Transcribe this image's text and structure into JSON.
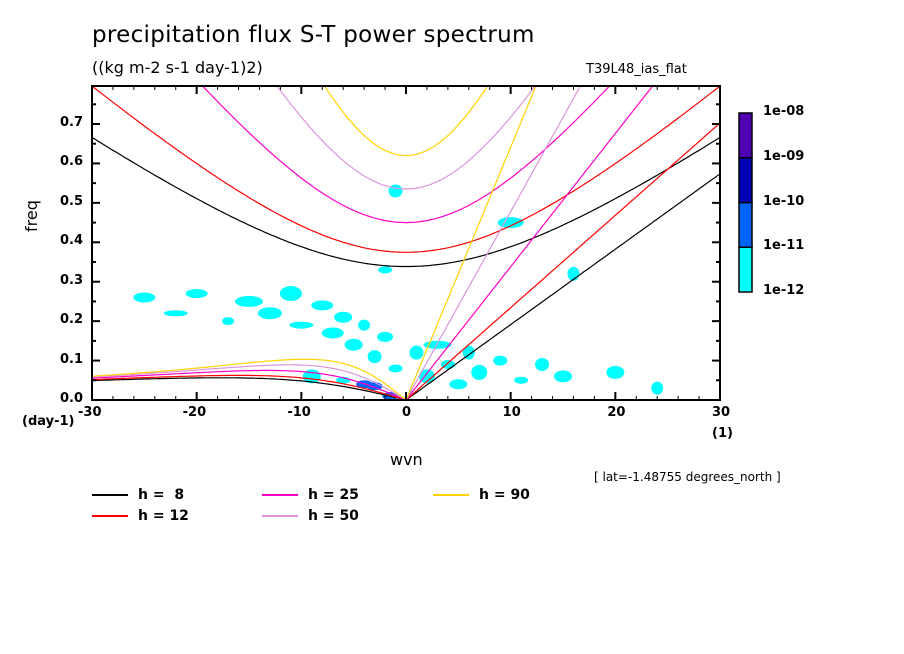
{
  "chart_data": {
    "type": "heatmap",
    "title": "precipitation flux S-T power spectrum",
    "subtitle": "((kg m-2 s-1 day-1)2)",
    "run_label": "T39L48_ias_flat",
    "xlabel": "wvn",
    "ylabel": "freq",
    "x_units": "(1)",
    "y_units": "(day-1)",
    "xlim": [
      -30,
      30
    ],
    "ylim": [
      0.0,
      0.79
    ],
    "x_ticks": [
      -30,
      -20,
      -10,
      0,
      10,
      20,
      30
    ],
    "x_tick_labels": [
      "-30",
      "-20",
      "-10",
      "0",
      "10",
      "20",
      "30"
    ],
    "y_ticks": [
      0.0,
      0.1,
      0.2,
      0.3,
      0.4,
      0.5,
      0.6,
      0.7
    ],
    "y_tick_labels": [
      "0.0",
      "0.1",
      "0.2",
      "0.3",
      "0.4",
      "0.5",
      "0.6",
      "0.7"
    ],
    "annotation": "[ lat=-1.48755 degrees_north ]",
    "colorbar": {
      "levels": [
        1e-12,
        1e-11,
        1e-10,
        1e-09,
        1e-08
      ],
      "labels": [
        "1e-12",
        "1e-11",
        "1e-10",
        "1e-09",
        "1e-08"
      ],
      "colors": [
        "#00ffff",
        "#0064ff",
        "#0000b4",
        "#5000b4"
      ]
    },
    "dispersion_curves": {
      "equivalent_depths": [
        8,
        12,
        25,
        50,
        90
      ],
      "wave_types": [
        "kelvin",
        "rossby_n1",
        "inertio_gravity_n1"
      ],
      "legend": [
        {
          "label": "h =  8",
          "color": "#000000"
        },
        {
          "label": "h = 12",
          "color": "#ff0000"
        },
        {
          "label": "h = 25",
          "color": "#ff00c8"
        },
        {
          "label": "h = 50",
          "color": "#dc96dc"
        },
        {
          "label": "h = 90",
          "color": "#ffd200"
        }
      ]
    },
    "power_patches": [
      {
        "wvn": -25,
        "freq": 0.26,
        "level": 0
      },
      {
        "wvn": -22,
        "freq": 0.22,
        "level": 0
      },
      {
        "wvn": -20,
        "freq": 0.27,
        "level": 0
      },
      {
        "wvn": -17,
        "freq": 0.2,
        "level": 0
      },
      {
        "wvn": -15,
        "freq": 0.25,
        "level": 0
      },
      {
        "wvn": -13,
        "freq": 0.22,
        "level": 0
      },
      {
        "wvn": -11,
        "freq": 0.27,
        "level": 0
      },
      {
        "wvn": -10,
        "freq": 0.19,
        "level": 0
      },
      {
        "wvn": -8,
        "freq": 0.24,
        "level": 0
      },
      {
        "wvn": -7,
        "freq": 0.17,
        "level": 0
      },
      {
        "wvn": -6,
        "freq": 0.21,
        "level": 0
      },
      {
        "wvn": -5,
        "freq": 0.14,
        "level": 0
      },
      {
        "wvn": -4,
        "freq": 0.19,
        "level": 0
      },
      {
        "wvn": -3,
        "freq": 0.11,
        "level": 0
      },
      {
        "wvn": -2,
        "freq": 0.16,
        "level": 0
      },
      {
        "wvn": -1,
        "freq": 0.08,
        "level": 0
      },
      {
        "wvn": 1,
        "freq": 0.12,
        "level": 0
      },
      {
        "wvn": 2,
        "freq": 0.06,
        "level": 0
      },
      {
        "wvn": 3,
        "freq": 0.14,
        "level": 0
      },
      {
        "wvn": 4,
        "freq": 0.09,
        "level": 0
      },
      {
        "wvn": 5,
        "freq": 0.04,
        "level": 0
      },
      {
        "wvn": 6,
        "freq": 0.12,
        "level": 0
      },
      {
        "wvn": 7,
        "freq": 0.07,
        "level": 0
      },
      {
        "wvn": 9,
        "freq": 0.1,
        "level": 0
      },
      {
        "wvn": 11,
        "freq": 0.05,
        "level": 0
      },
      {
        "wvn": 13,
        "freq": 0.09,
        "level": 0
      },
      {
        "wvn": 15,
        "freq": 0.06,
        "level": 0
      },
      {
        "wvn": 20,
        "freq": 0.07,
        "level": 0
      },
      {
        "wvn": 24,
        "freq": 0.03,
        "level": 0
      },
      {
        "wvn": -9,
        "freq": 0.06,
        "level": 0
      },
      {
        "wvn": -6,
        "freq": 0.05,
        "level": 0
      },
      {
        "wvn": -4,
        "freq": 0.04,
        "level": 1
      },
      {
        "wvn": -3,
        "freq": 0.035,
        "level": 1
      },
      {
        "wvn": -1.5,
        "freq": 0.01,
        "level": 1
      },
      {
        "wvn": -2,
        "freq": 0.33,
        "level": 0
      },
      {
        "wvn": -1,
        "freq": 0.53,
        "level": 0
      },
      {
        "wvn": 10,
        "freq": 0.45,
        "level": 0
      },
      {
        "wvn": 16,
        "freq": 0.32,
        "level": 0
      }
    ]
  }
}
